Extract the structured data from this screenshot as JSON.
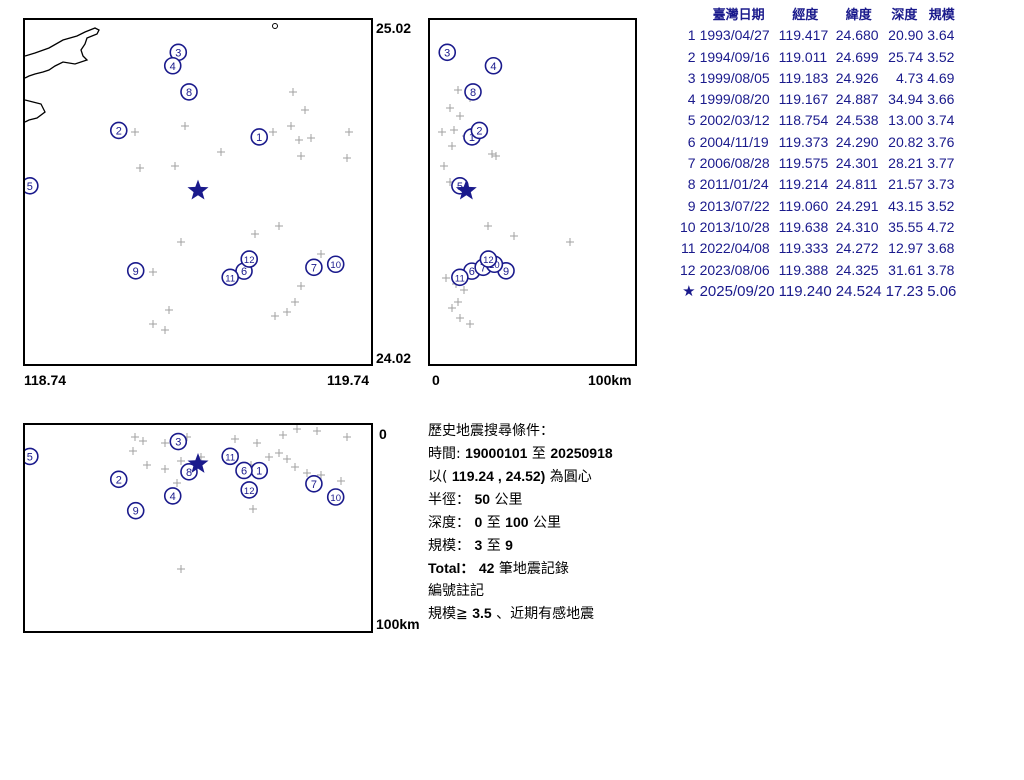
{
  "map": {
    "lat_top": "25.02",
    "lat_bottom": "24.02",
    "lon_left": "118.74",
    "lon_right": "119.74",
    "cs_x_start": "0",
    "cs_x_end": "100km",
    "cs_depth_top": "0",
    "cs_depth_bottom": "100km"
  },
  "colors": {
    "marker": "#1a1a8c",
    "background_quake": "#a0a0a0",
    "coast": "#000000"
  },
  "table": {
    "headers": [
      "臺灣日期",
      "經度",
      "緯度",
      "深度",
      "規模"
    ],
    "rows": [
      {
        "no": "1",
        "date": "1993/04/27",
        "lon": "119.417",
        "lat": "24.680",
        "depth": "20.90",
        "mag": "3.64"
      },
      {
        "no": "2",
        "date": "1994/09/16",
        "lon": "119.011",
        "lat": "24.699",
        "depth": "25.74",
        "mag": "3.52"
      },
      {
        "no": "3",
        "date": "1999/08/05",
        "lon": "119.183",
        "lat": "24.926",
        "depth": "4.73",
        "mag": "4.69"
      },
      {
        "no": "4",
        "date": "1999/08/20",
        "lon": "119.167",
        "lat": "24.887",
        "depth": "34.94",
        "mag": "3.66"
      },
      {
        "no": "5",
        "date": "2002/03/12",
        "lon": "118.754",
        "lat": "24.538",
        "depth": "13.00",
        "mag": "3.74"
      },
      {
        "no": "6",
        "date": "2004/11/19",
        "lon": "119.373",
        "lat": "24.290",
        "depth": "20.82",
        "mag": "3.76"
      },
      {
        "no": "7",
        "date": "2006/08/28",
        "lon": "119.575",
        "lat": "24.301",
        "depth": "28.21",
        "mag": "3.77"
      },
      {
        "no": "8",
        "date": "2011/01/24",
        "lon": "119.214",
        "lat": "24.811",
        "depth": "21.57",
        "mag": "3.73"
      },
      {
        "no": "9",
        "date": "2013/07/22",
        "lon": "119.060",
        "lat": "24.291",
        "depth": "43.15",
        "mag": "3.52"
      },
      {
        "no": "10",
        "date": "2013/10/28",
        "lon": "119.638",
        "lat": "24.310",
        "depth": "35.55",
        "mag": "4.72"
      },
      {
        "no": "11",
        "date": "2022/04/08",
        "lon": "119.333",
        "lat": "24.272",
        "depth": "12.97",
        "mag": "3.68"
      },
      {
        "no": "12",
        "date": "2023/08/06",
        "lon": "119.388",
        "lat": "24.325",
        "depth": "31.61",
        "mag": "3.78"
      }
    ],
    "target": {
      "symbol": "★",
      "date": "2025/09/20",
      "lon": "119.240",
      "lat": "24.524",
      "depth": "17.23",
      "mag": "5.06"
    }
  },
  "search": {
    "title": "歷史地震搜尋條件：",
    "time_label": "時間:",
    "time_start": "19000101",
    "time_sep": "至",
    "time_end": "20250918",
    "center_prefix": "以(",
    "center_value": "119.24 , 24.52)",
    "center_suffix": "為圓心",
    "radius_label": "半徑：",
    "radius_value": "50",
    "radius_unit": "公里",
    "depth_label": "深度：",
    "depth_min": "0",
    "depth_sep": "至",
    "depth_max": "100",
    "depth_unit": "公里",
    "mag_label": "規模：",
    "mag_min": "3",
    "mag_sep": "至",
    "mag_max": "9",
    "total_label": "Total：",
    "total_value": "42",
    "total_unit": "筆地震記錄",
    "note_title": "編號註記",
    "note_prefix": "規模≧",
    "note_value": "3.5",
    "note_suffix": "、近期有感地震"
  }
}
